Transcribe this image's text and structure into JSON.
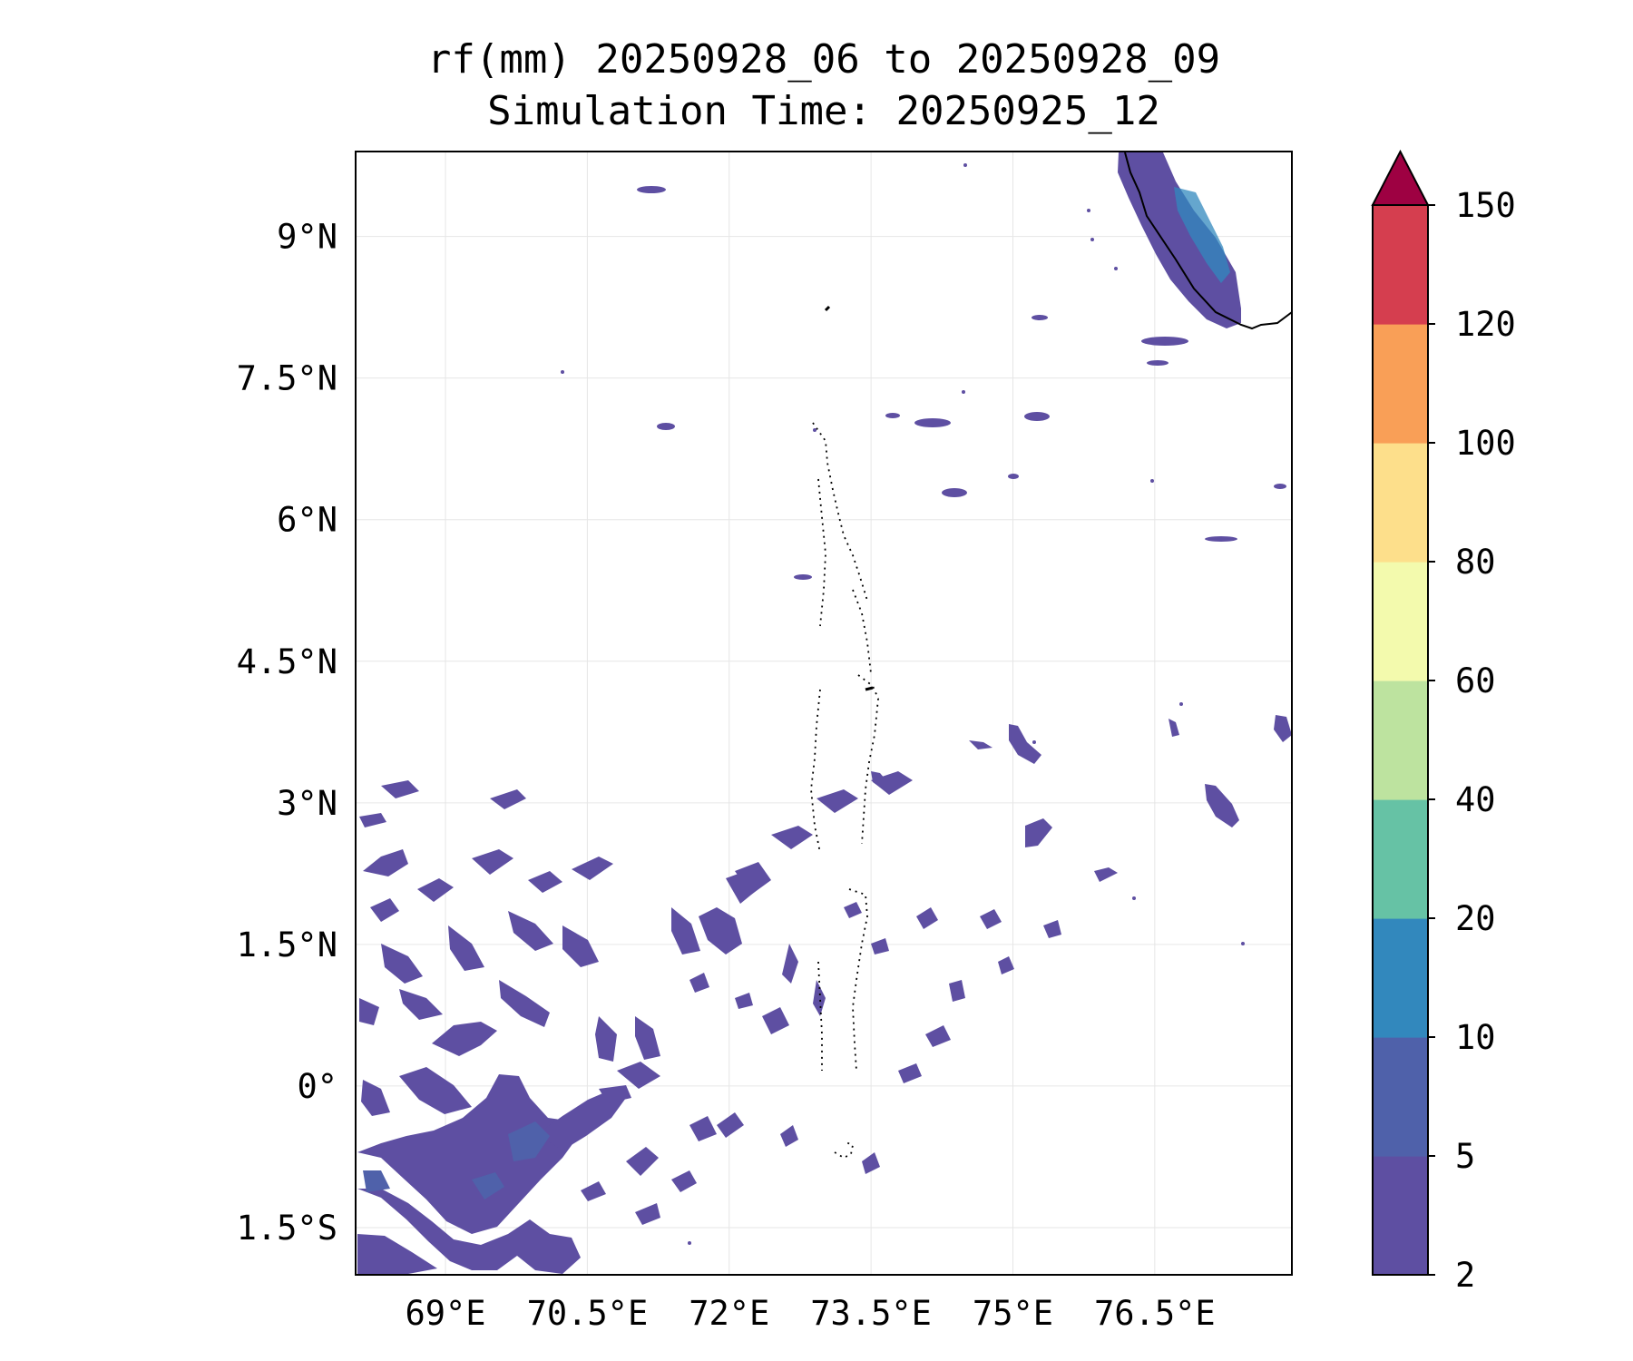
{
  "title": {
    "line1": "rf(mm) 20250928_06 to 20250928_09",
    "line2": "Simulation Time: 20250925_12"
  },
  "map": {
    "lon_range": [
      68.05,
      77.95
    ],
    "lat_range": [
      -2.0,
      9.9
    ],
    "lon_ticks": [
      69,
      70.5,
      72,
      73.5,
      75,
      76.5
    ],
    "lon_labels": [
      "69°E",
      "70.5°E",
      "72°E",
      "73.5°E",
      "75°E",
      "76.5°E"
    ],
    "lat_ticks": [
      9,
      7.5,
      6,
      4.5,
      3,
      1.5,
      0,
      -1.5
    ],
    "lat_labels": [
      "9°N",
      "7.5°N",
      "6°N",
      "4.5°N",
      "3°N",
      "1.5°N",
      "0°",
      "1.5°S"
    ]
  },
  "colorbar": {
    "levels": [
      2,
      5,
      10,
      20,
      40,
      60,
      80,
      100,
      120,
      150
    ],
    "labels": [
      "2",
      "5",
      "10",
      "20",
      "40",
      "60",
      "80",
      "100",
      "120",
      "150"
    ],
    "colors": [
      "#5e4fa2",
      "#4f61aa",
      "#3288bd",
      "#66c2a5",
      "#bde39f",
      "#f3faad",
      "#fddf8b",
      "#f99f57",
      "#d53e4f",
      "#9e0142"
    ],
    "extend": "max"
  }
}
